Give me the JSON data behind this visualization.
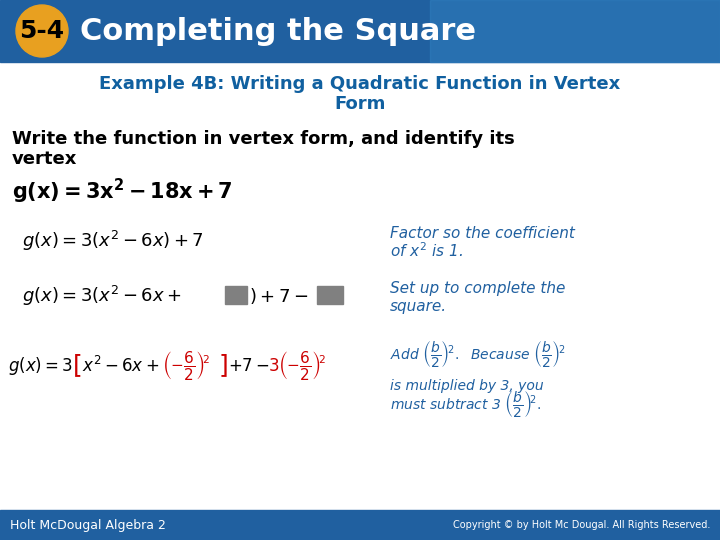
{
  "header_bg_color": "#2060A0",
  "header_text": "Completing the Square",
  "header_number": "5-4",
  "header_number_bg": "#E8A020",
  "header_number_text": "#000000",
  "header_text_color": "#FFFFFF",
  "body_bg_color": "#FFFFFF",
  "title_color": "#1060A0",
  "title_text1": "Example 4B: Writing a Quadratic Function in Vertex",
  "title_text2": "Form",
  "instruction_text": "Write the function in vertex form, and identify its vertex",
  "equation_main": "g(x) = 3x² – 18x + 7",
  "step1_left": "g(x) = 3(x² – 6x) + 7",
  "step1_right": "Factor so the coefficient\nof x² is 1.",
  "step2_left": "g(x) = 3(x² – 6x +    ) + 7 –   ",
  "step2_right": "Set up to complete the\nsquare.",
  "step3_right1": "Add",
  "step3_right2": "Because",
  "step3_right3": "is multiplied by 3, you\nmust subtract 3",
  "footer_left": "Holt McDougal Algebra 2",
  "footer_right": "Copyright © by Holt Mc Dougal. All Rights Reserved.",
  "footer_bg_color": "#2060A0",
  "footer_text_color": "#FFFFFF",
  "accent_blue": "#2060A0",
  "accent_red": "#CC0000",
  "gray_box": "#808080"
}
